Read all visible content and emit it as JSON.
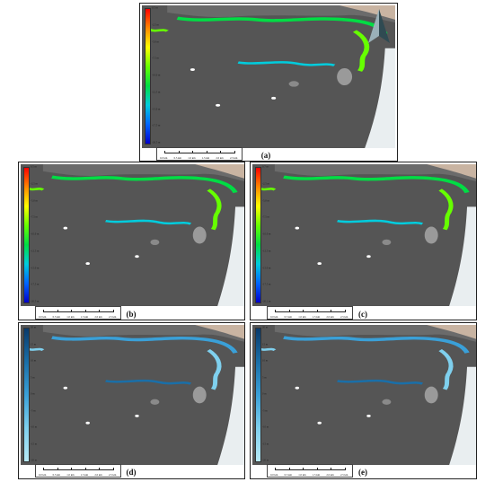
{
  "panels": [
    {
      "id": "a",
      "label": "(a)",
      "scheme": "rainbow",
      "north_arrow": true,
      "colorbar_ticks": [
        "0.5 m",
        "-2.5 m",
        "-5.0 m",
        "-7.5 m",
        "-10.0 m",
        "-12.5 m",
        "-15.0 m",
        "-17.5 m",
        "-20.5 m"
      ],
      "scale_labels": [
        "0.0 km",
        "0.5 km",
        "1.0 km",
        "1.5 km",
        "2.0 km",
        "2.5 km"
      ]
    },
    {
      "id": "b",
      "label": "(b)",
      "scheme": "rainbow",
      "north_arrow": false,
      "colorbar_ticks": [
        "0.5 m",
        "-2.5 m",
        "-5.0 m",
        "-7.5 m",
        "-10.0 m",
        "-12.5 m",
        "-15.0 m",
        "-17.5 m",
        "-20.5 m"
      ],
      "scale_labels": [
        "0.0 km",
        "0.5 km",
        "1.0 km",
        "1.5 km",
        "2.0 km",
        "2.5 km"
      ]
    },
    {
      "id": "c",
      "label": "(c)",
      "scheme": "rainbow",
      "north_arrow": false,
      "colorbar_ticks": [
        "0.7 m",
        "-2.5 m",
        "-5.0 m",
        "-7.5 m",
        "-10.0 m",
        "-12.5 m",
        "-15.0 m",
        "-17.5 m",
        "-20.1 m"
      ],
      "scale_labels": [
        "0.0 km",
        "0.5 km",
        "1.0 km",
        "1.5 km",
        "2.0 km",
        "2.5 km"
      ]
    },
    {
      "id": "d",
      "label": "(d)",
      "scheme": "blue",
      "north_arrow": false,
      "colorbar_ticks": [
        "20 m",
        "15 m",
        "10 m",
        "5 m",
        "0 m",
        "-5 m",
        "-10 m",
        "-15 m",
        "-20 m"
      ],
      "scale_labels": [
        "0.0 km",
        "0.5 km",
        "1.0 km",
        "1.5 km",
        "2.0 km",
        "2.5 km"
      ]
    },
    {
      "id": "e",
      "label": "(e)",
      "scheme": "blue",
      "north_arrow": false,
      "colorbar_ticks": [
        "20 m",
        "15 m",
        "10 m",
        "5 m",
        "0 m",
        "-5 m",
        "-10 m",
        "-15 m",
        "-20 m"
      ],
      "scale_labels": [
        "0.0 km",
        "0.5 km",
        "1.0 km",
        "1.5 km",
        "2.0 km",
        "2.5 km"
      ]
    }
  ],
  "colors": {
    "map_background": "#555555",
    "land": "#c9b4a2",
    "rainbow": [
      "#ff0000",
      "#ff8800",
      "#ffff00",
      "#66ff00",
      "#00dd44",
      "#00ccdd",
      "#0066ff",
      "#0000cc"
    ],
    "blue": [
      "#0a3a6b",
      "#1a6fa8",
      "#3aa0d8",
      "#7fd0ee",
      "#b8eaf6"
    ]
  }
}
